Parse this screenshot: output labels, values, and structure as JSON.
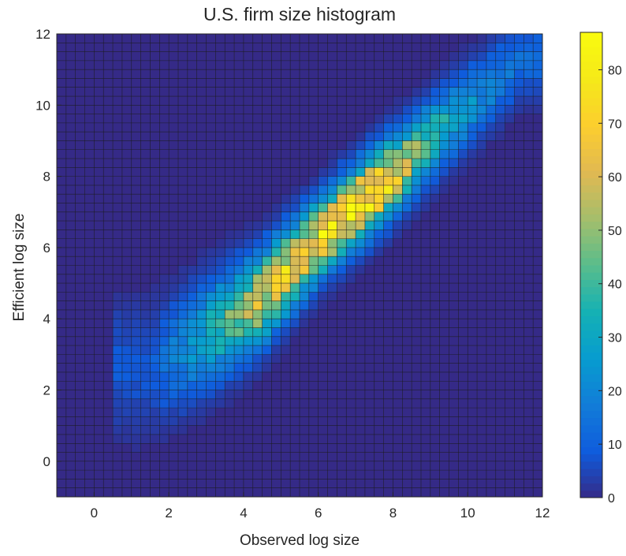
{
  "chart_data": {
    "type": "heatmap",
    "title": "U.S. firm size histogram",
    "xlabel": "Observed log size",
    "ylabel": "Efficient log size",
    "xlim": [
      -1,
      12
    ],
    "ylim": [
      -1,
      12
    ],
    "x_ticks": [
      "0",
      "2",
      "4",
      "6",
      "8",
      "10",
      "12"
    ],
    "y_ticks": [
      "0",
      "2",
      "4",
      "6",
      "8",
      "10",
      "12"
    ],
    "bin_width": 0.25,
    "colorbar": {
      "min": 0,
      "max": 87,
      "ticks": [
        "0",
        "10",
        "20",
        "30",
        "40",
        "50",
        "60",
        "70",
        "80"
      ],
      "colormap": "parula"
    },
    "grid": true,
    "density_ridge": [
      {
        "x": 1.5,
        "y": 2.6,
        "peak": 8
      },
      {
        "x": 2.5,
        "y": 3.2,
        "peak": 22
      },
      {
        "x": 3.5,
        "y": 3.9,
        "peak": 40
      },
      {
        "x": 4.5,
        "y": 4.6,
        "peak": 58
      },
      {
        "x": 5.5,
        "y": 5.7,
        "peak": 68
      },
      {
        "x": 6.5,
        "y": 6.7,
        "peak": 72
      },
      {
        "x": 7.5,
        "y": 7.6,
        "peak": 84
      },
      {
        "x": 8.5,
        "y": 8.5,
        "peak": 50
      },
      {
        "x": 9.5,
        "y": 9.5,
        "peak": 30
      },
      {
        "x": 10.5,
        "y": 10.4,
        "peak": 20
      },
      {
        "x": 11.5,
        "y": 11.3,
        "peak": 12
      }
    ]
  }
}
